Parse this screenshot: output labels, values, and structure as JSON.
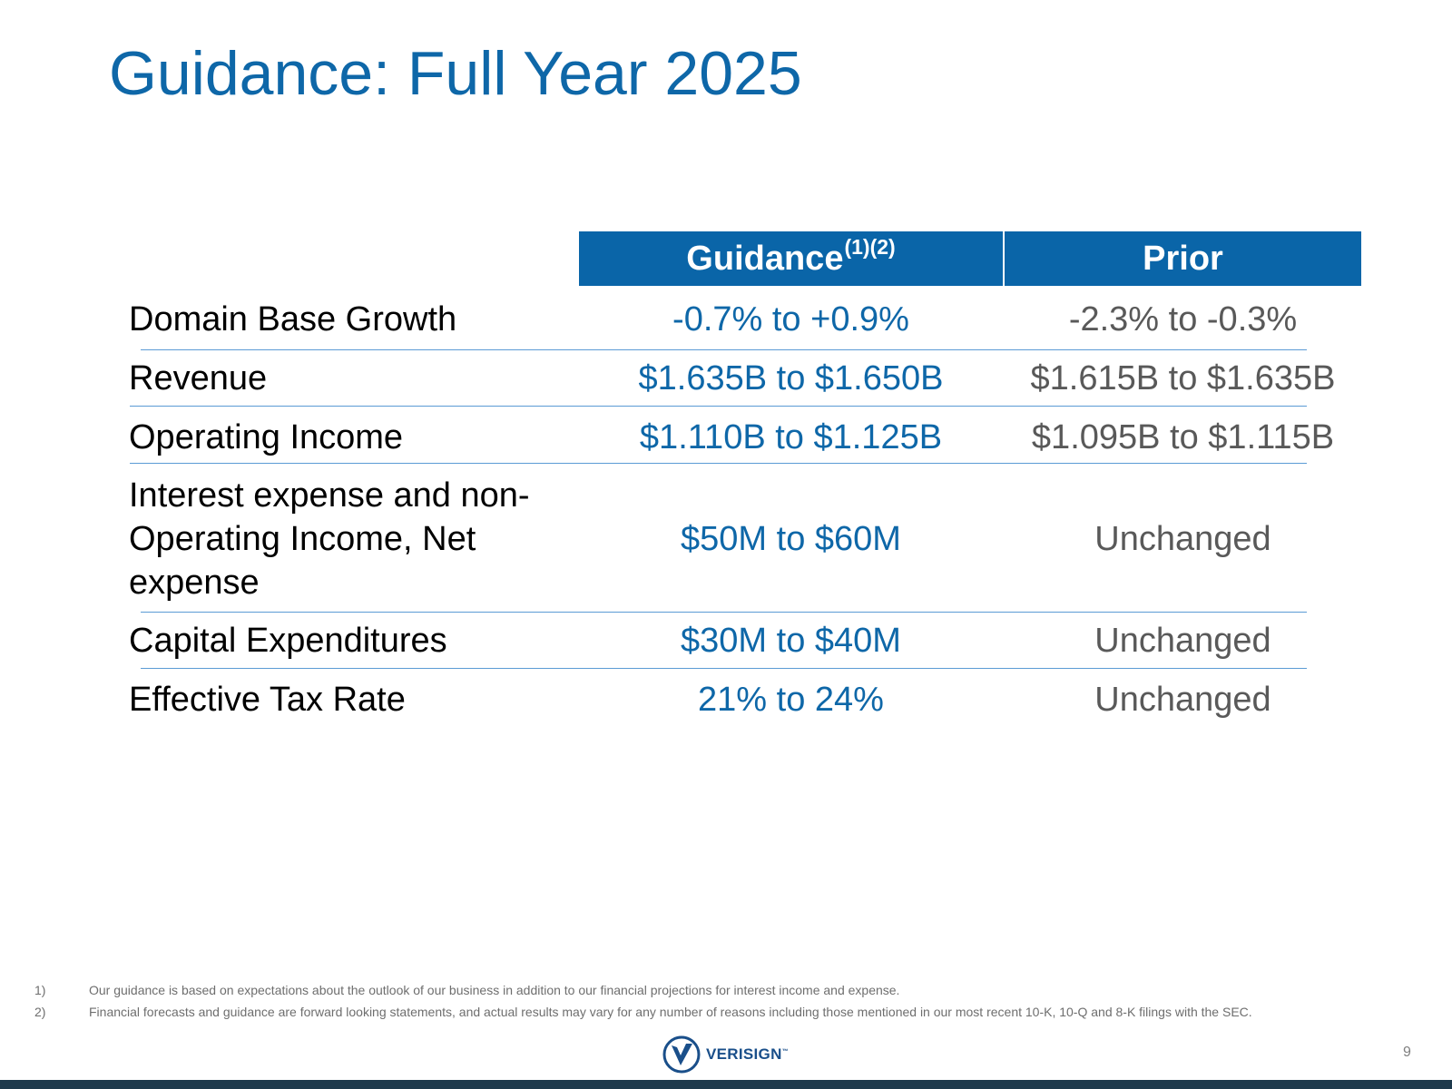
{
  "title": "Guidance: Full Year 2025",
  "table": {
    "header_guidance": "Guidance",
    "header_guidance_sup": "(1)(2)",
    "header_prior": "Prior",
    "rows": [
      {
        "label": "Domain Base Growth",
        "guidance": "-0.7% to +0.9%",
        "prior": "-2.3% to -0.3%"
      },
      {
        "label": "Revenue",
        "guidance": "$1.635B to $1.650B",
        "prior": "$1.615B to $1.635B"
      },
      {
        "label": "Operating Income",
        "guidance": "$1.110B to $1.125B",
        "prior": "$1.095B to $1.115B"
      },
      {
        "label_lines": [
          "Interest expense and non-",
          "Operating Income, Net",
          "expense"
        ],
        "guidance": "$50M to $60M",
        "prior": "Unchanged"
      },
      {
        "label": "Capital Expenditures",
        "guidance": "$30M to $40M",
        "prior": "Unchanged"
      },
      {
        "label": "Effective Tax Rate",
        "guidance": "21% to 24%",
        "prior": "Unchanged"
      }
    ]
  },
  "footnotes": [
    {
      "num": "1)",
      "text": "Our guidance is based on expectations about the outlook of our business in addition to our financial projections for interest income and expense."
    },
    {
      "num": "2)",
      "text": "Financial forecasts and guidance are forward looking statements, and actual results may vary for any number of reasons including those mentioned in our most recent 10-K, 10-Q and 8-K filings with the SEC."
    }
  ],
  "logo": {
    "text": "VERISIGN",
    "mark": "™",
    "icon": "verisign-check-icon"
  },
  "page_number": "9",
  "colors": {
    "accent": "#0e67a8",
    "header_bg": "#0a65a8",
    "prior_text": "#595959",
    "divider": "#5b9bd5",
    "footer_bar": "#1e3a4c"
  }
}
